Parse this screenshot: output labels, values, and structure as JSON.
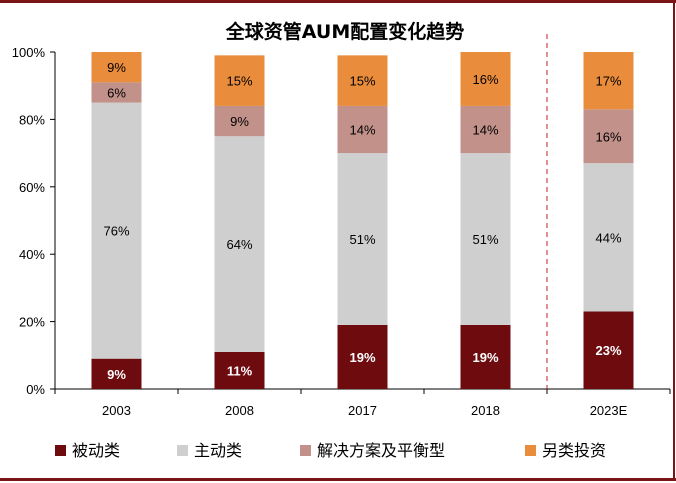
{
  "chart_data": {
    "type": "bar",
    "stacked": true,
    "title": "全球资管AUM配置变化趋势",
    "xlabel": "",
    "ylabel": "",
    "categories": [
      "2003",
      "2008",
      "2017",
      "2018",
      "2023E"
    ],
    "ylim": [
      0,
      100
    ],
    "yticks": [
      "0%",
      "20%",
      "40%",
      "60%",
      "80%",
      "100%"
    ],
    "legend_position": "bottom",
    "grid": false,
    "forecast_separator_after_category": "2018",
    "series": [
      {
        "name": "被动类",
        "color": "#6e0b0f",
        "label_color": "#ffffff",
        "label_bold": true,
        "values": [
          9,
          11,
          19,
          19,
          23
        ],
        "labels": [
          "9%",
          "11%",
          "19%",
          "19%",
          "23%"
        ]
      },
      {
        "name": "主动类",
        "color": "#cfcfcf",
        "label_color": "#000000",
        "label_bold": false,
        "values": [
          76,
          64,
          51,
          51,
          44
        ],
        "labels": [
          "76%",
          "64%",
          "51%",
          "51%",
          "44%"
        ]
      },
      {
        "name": "解决方案及平衡型",
        "color": "#c1918a",
        "label_color": "#000000",
        "label_bold": false,
        "values": [
          6,
          9,
          14,
          14,
          16
        ],
        "labels": [
          "6%",
          "9%",
          "14%",
          "14%",
          "16%"
        ]
      },
      {
        "name": "另类投资",
        "color": "#e98c3c",
        "label_color": "#000000",
        "label_bold": false,
        "values": [
          9,
          15,
          15,
          16,
          17
        ],
        "labels": [
          "9%",
          "15%",
          "15%",
          "16%",
          "17%"
        ]
      }
    ]
  }
}
